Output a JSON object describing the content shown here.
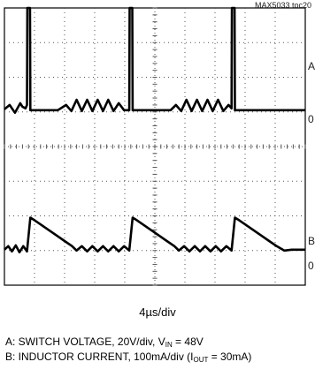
{
  "figure_id": "MAX5033 toc20",
  "timebase": "4µs/div",
  "side_labels": {
    "a": "A",
    "a_zero": "0",
    "b": "B",
    "b_zero": "0"
  },
  "captions": {
    "a": {
      "prefix": "A: SWITCH VOLTAGE, 20V/div, V",
      "sub": "IN",
      "suffix": " = 48V"
    },
    "b": {
      "prefix": "B: INDUCTOR CURRENT, 100mA/div (I",
      "sub": "OUT",
      "suffix": " = 30mA)"
    }
  },
  "colors": {
    "trace": "#000000",
    "grid": "#555555",
    "background": "#ffffff"
  },
  "chart_data": {
    "type": "line",
    "title": "",
    "grid": true,
    "x_unit": "µs",
    "x_range": [
      0,
      40
    ],
    "series": [
      {
        "name": "A",
        "units_per_div": "20V/div",
        "y_range_div": [
          0,
          8
        ],
        "x": [
          0,
          0.7,
          1.4,
          2.1,
          2.4,
          2.8,
          3.0,
          3.05,
          3.4,
          3.45,
          3.6,
          4.3,
          5.7,
          7.1,
          8.2,
          8.9,
          9.6,
          10.3,
          11.0,
          11.7,
          12.4,
          13.1,
          13.8,
          14.5,
          15.2,
          15.9,
          16.6,
          16.65,
          17.0,
          17.05,
          17.2,
          17.9,
          19.3,
          20.7,
          22.1,
          22.8,
          23.5,
          24.2,
          24.9,
          25.6,
          26.3,
          27.0,
          27.7,
          28.4,
          29.1,
          29.8,
          30.2,
          30.25,
          30.6,
          30.65,
          30.8,
          31.5,
          32.9,
          34.3,
          35.7,
          37.1,
          38.5,
          40
        ],
        "y": [
          2.15,
          2.4,
          1.95,
          2.5,
          2.3,
          2.2,
          2.4,
          8.0,
          8.0,
          2.1,
          2.1,
          2.1,
          2.1,
          2.1,
          2.4,
          2.05,
          2.7,
          2.05,
          2.7,
          2.05,
          2.7,
          2.05,
          2.7,
          2.05,
          2.5,
          2.1,
          2.1,
          8.0,
          8.0,
          2.1,
          2.1,
          2.1,
          2.1,
          2.1,
          2.1,
          2.4,
          2.05,
          2.7,
          2.05,
          2.7,
          2.05,
          2.7,
          2.05,
          2.7,
          2.05,
          2.4,
          2.2,
          8.0,
          8.0,
          2.1,
          2.1,
          2.1,
          2.1,
          2.1,
          2.1,
          2.1,
          2.1,
          2.1
        ]
      },
      {
        "name": "B",
        "units_per_div": "100mA/div",
        "y_range_div": [
          0,
          8
        ],
        "x": [
          0,
          0.5,
          1.0,
          1.5,
          2.0,
          2.5,
          3.0,
          3.45,
          4.0,
          5.0,
          6.0,
          7.0,
          8.0,
          9.0,
          9.6,
          10.3,
          11.0,
          11.7,
          12.4,
          13.1,
          13.8,
          14.5,
          15.2,
          15.9,
          16.6,
          17.05,
          17.6,
          18.6,
          19.6,
          20.6,
          21.6,
          22.6,
          23.2,
          23.9,
          24.6,
          25.3,
          26.0,
          26.7,
          27.4,
          28.1,
          28.8,
          29.5,
          30.2,
          30.65,
          31.2,
          32.2,
          33.2,
          34.2,
          35.2,
          36.2,
          37.2,
          38.2,
          39.2,
          40
        ],
        "y": [
          2.05,
          2.25,
          1.95,
          2.3,
          1.9,
          2.25,
          1.95,
          3.9,
          3.75,
          3.45,
          3.15,
          2.85,
          2.55,
          2.25,
          2.0,
          2.25,
          1.95,
          2.25,
          1.95,
          2.25,
          1.95,
          2.25,
          1.95,
          2.25,
          2.0,
          3.9,
          3.75,
          3.45,
          3.15,
          2.85,
          2.55,
          2.25,
          2.0,
          2.25,
          1.95,
          2.25,
          1.95,
          2.25,
          1.95,
          2.25,
          1.95,
          2.25,
          2.0,
          3.9,
          3.75,
          3.45,
          3.15,
          2.85,
          2.55,
          2.25,
          2.0,
          2.05,
          2.05,
          2.05
        ]
      }
    ]
  }
}
